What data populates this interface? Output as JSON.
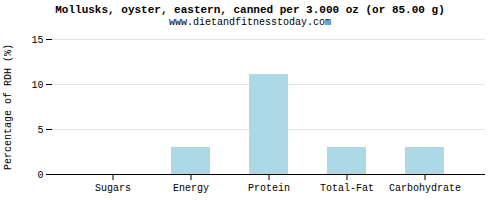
{
  "chart_data": {
    "type": "bar",
    "title": "Mollusks, oyster, eastern, canned per 3.000 oz (or 85.00 g)",
    "subtitle": "www.dietandfitnesstoday.com",
    "categories": [
      "Sugars",
      "Energy",
      "Protein",
      "Total-Fat",
      "Carbohydrate"
    ],
    "values": [
      0,
      3.0,
      11.1,
      3.0,
      3.0
    ],
    "color": "#add8e6",
    "ylabel": "Percentage of RDH (%)",
    "ylim": [
      0,
      15
    ],
    "yticks": [
      0,
      5,
      10,
      15
    ],
    "grid": true
  }
}
